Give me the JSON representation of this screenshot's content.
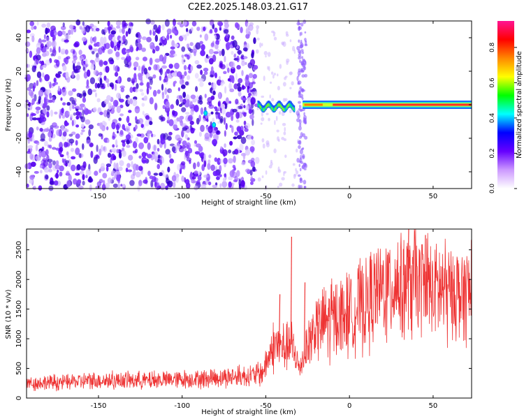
{
  "title": "C2E2.2025.148.03.21.G17",
  "chart_data": [
    {
      "type": "heatmap",
      "xlabel": "Height of straight line (km)",
      "ylabel": "Frequency (Hz)",
      "xlim": [
        -193,
        73
      ],
      "ylim": [
        -50,
        50
      ],
      "xticks": [
        -150,
        -100,
        -50,
        0,
        50
      ],
      "yticks": [
        -40,
        -20,
        0,
        20,
        40
      ],
      "colorbar": {
        "label": "Normalized spectral amplitude",
        "range": [
          0.0,
          0.95
        ],
        "ticks": [
          0.0,
          0.2,
          0.4,
          0.6,
          0.8
        ],
        "colors": [
          "#ffffff",
          "#cc99ff",
          "#6600ff",
          "#0000ff",
          "#00ffff",
          "#00ff00",
          "#ffff00",
          "#ff8800",
          "#ff0000",
          "#ff1493"
        ]
      },
      "features": {
        "noise_region_x": [
          -193,
          -55
        ],
        "transition_x": [
          -55,
          -28
        ],
        "signal_line_freq": 0,
        "signal_line_x": [
          -28,
          73
        ]
      }
    },
    {
      "type": "line",
      "xlabel": "Height of straight line (km)",
      "ylabel": "SNR (10 * v/v)",
      "xlim": [
        -193,
        73
      ],
      "ylim": [
        0,
        2850
      ],
      "xticks": [
        -150,
        -100,
        -50,
        0,
        50
      ],
      "yticks": [
        0,
        500,
        1000,
        1500,
        2000,
        2500
      ],
      "color": "#ee3333",
      "trend": {
        "x": [
          -193,
          -170,
          -150,
          -120,
          -100,
          -80,
          -60,
          -52,
          -48,
          -45,
          -40,
          -35,
          -30,
          -25,
          -20,
          -10,
          0,
          10,
          20,
          30,
          40,
          50,
          60,
          73
        ],
        "y": [
          250,
          270,
          300,
          300,
          320,
          340,
          380,
          420,
          700,
          900,
          850,
          900,
          500,
          900,
          1200,
          1350,
          1450,
          1600,
          1850,
          1950,
          1950,
          1850,
          1800,
          1750
        ]
      },
      "spikes": [
        {
          "x": -35,
          "y": 2720
        },
        {
          "x": -42,
          "y": 1750
        },
        {
          "x": -27,
          "y": 1950
        },
        {
          "x": 35,
          "y": 2850
        },
        {
          "x": 45,
          "y": 2750
        }
      ]
    }
  ]
}
